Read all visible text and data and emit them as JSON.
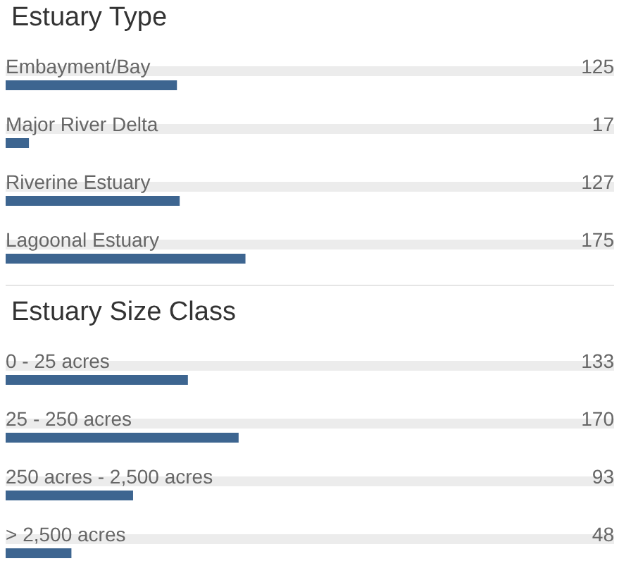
{
  "chart_data": [
    {
      "type": "bar",
      "orientation": "horizontal",
      "title": "Estuary Type",
      "categories": [
        "Embayment/Bay",
        "Major River Delta",
        "Riverine Estuary",
        "Lagoonal Estuary"
      ],
      "values": [
        125,
        17,
        127,
        175
      ],
      "color": "#3d6590",
      "data_labels": true
    },
    {
      "type": "bar",
      "orientation": "horizontal",
      "title": "Estuary Size Class",
      "categories": [
        "0 - 25 acres",
        "25 - 250 acres",
        "250 acres - 2,500 acres",
        "> 2,500 acres"
      ],
      "values": [
        133,
        170,
        93,
        48
      ],
      "color": "#3d6590",
      "data_labels": true
    }
  ]
}
